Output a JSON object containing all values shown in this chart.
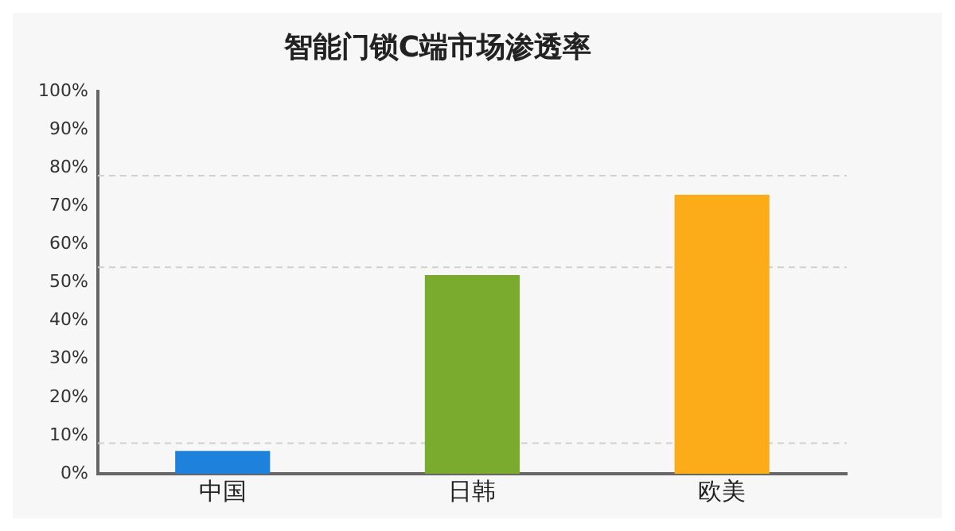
{
  "chart_data": {
    "type": "bar",
    "title": "智能门锁C端市场渗透率",
    "categories": [
      "中国",
      "日韩",
      "欧美"
    ],
    "values": [
      6,
      52,
      73
    ],
    "colors": [
      "#1e82dc",
      "#7aab2e",
      "#fbac18"
    ],
    "ylim": [
      0,
      100
    ],
    "yticks": [
      {
        "value": 0,
        "label": "0%"
      },
      {
        "value": 10,
        "label": "10%"
      },
      {
        "value": 20,
        "label": "20%"
      },
      {
        "value": 30,
        "label": "30%"
      },
      {
        "value": 40,
        "label": "40%"
      },
      {
        "value": 50,
        "label": "50%"
      },
      {
        "value": 60,
        "label": "60%"
      },
      {
        "value": 70,
        "label": "70%"
      },
      {
        "value": 80,
        "label": "80%"
      },
      {
        "value": 90,
        "label": "90%"
      },
      {
        "value": 100,
        "label": "100%"
      }
    ],
    "ref_lines": [
      {
        "axis": "y",
        "value": 8,
        "color": "#d0d0d0",
        "line_style": "dashed"
      },
      {
        "axis": "y",
        "value": 54,
        "color": "#d0d0d0",
        "line_style": "dashed"
      },
      {
        "axis": "y",
        "value": 78,
        "color": "#d0d0d0",
        "line_style": "dashed"
      }
    ],
    "grid": false,
    "legend": false
  }
}
